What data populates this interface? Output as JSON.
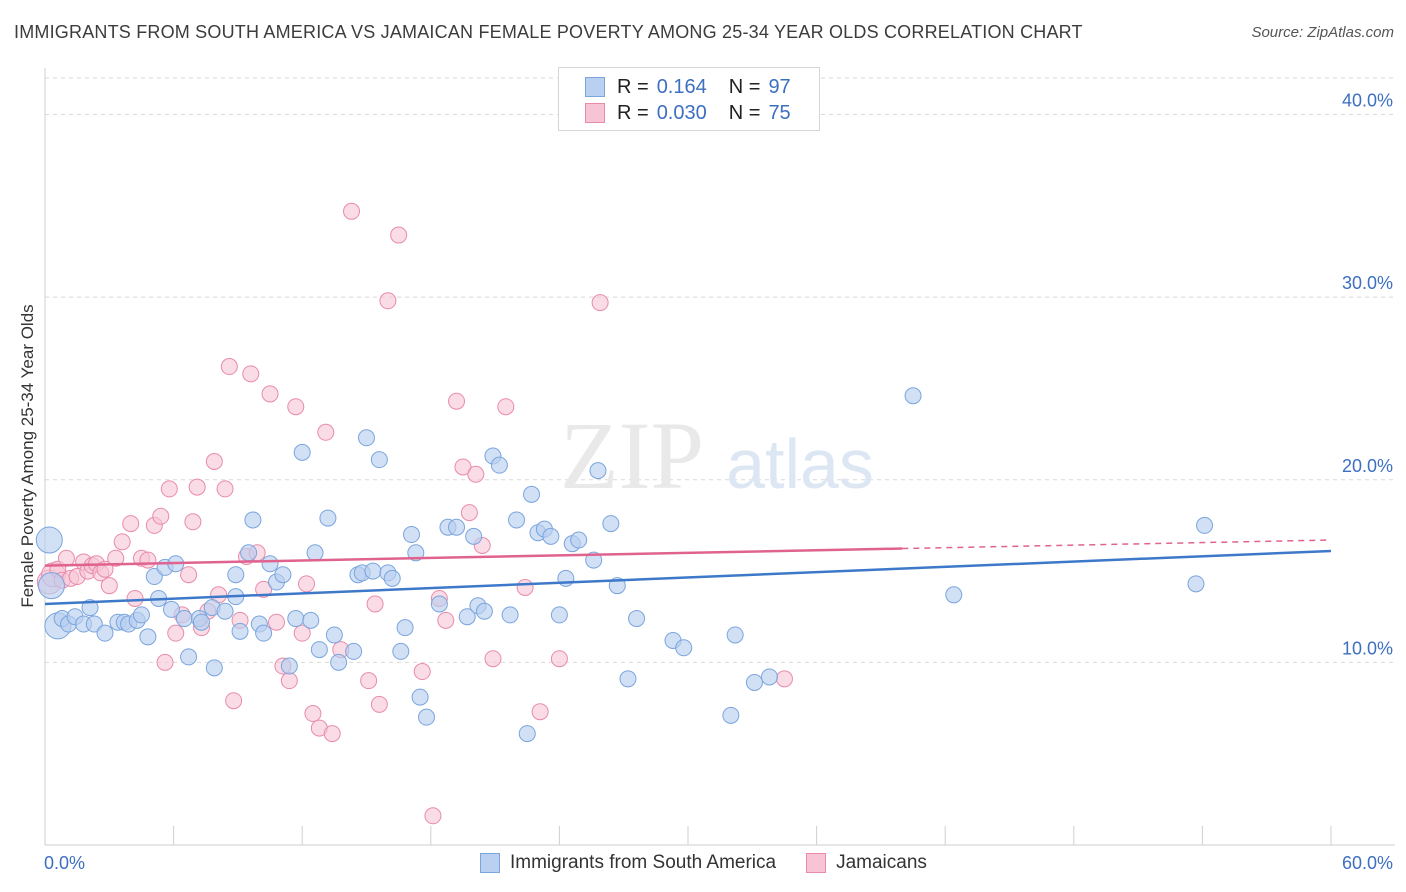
{
  "title": "IMMIGRANTS FROM SOUTH AMERICA VS JAMAICAN FEMALE POVERTY AMONG 25-34 YEAR OLDS CORRELATION CHART",
  "source": "Source: ZipAtlas.com",
  "watermark": {
    "zip": "ZIP",
    "atlas": "atlas"
  },
  "legend": {
    "r_label": "R =",
    "n_label": "N =",
    "rows": [
      {
        "r": "0.164",
        "n": "97"
      },
      {
        "r": "0.030",
        "n": "75"
      }
    ]
  },
  "bottom_legend": [
    "Immigrants from South America",
    "Jamaicans"
  ],
  "colors": {
    "blue_fill": "#b9d0f0",
    "blue_stroke": "#7aa5dd",
    "blue_line": "#3d78c9",
    "pink_fill": "#f7c4d5",
    "pink_stroke": "#e98bab",
    "pink_line": "#e0638f",
    "tick_text": "#3d6fc1",
    "grid": "#d9d9d9"
  },
  "chart_data": {
    "type": "scatter",
    "title": "IMMIGRANTS FROM SOUTH AMERICA VS JAMAICAN FEMALE POVERTY AMONG 25-34 YEAR OLDS CORRELATION CHART",
    "xlabel": "",
    "ylabel": "Female Poverty Among 25-34 Year Olds",
    "xlim": [
      0,
      60
    ],
    "ylim": [
      0,
      42
    ],
    "x_tick_labels": [
      "0.0%",
      "60.0%"
    ],
    "y_ticks": [
      10,
      20,
      30,
      40
    ],
    "y_tick_labels": [
      "10.0%",
      "20.0%",
      "30.0%",
      "40.0%"
    ],
    "grid": true,
    "legend_position": "top-center",
    "series": [
      {
        "name": "Immigrants from South America",
        "r": 0.164,
        "n": 97,
        "trend": {
          "x": [
            0,
            60
          ],
          "y": [
            13.2,
            16.1
          ]
        },
        "points": [
          [
            0.2,
            16.7
          ],
          [
            0.3,
            14.2
          ],
          [
            0.6,
            12.0
          ],
          [
            0.8,
            12.4
          ],
          [
            1.1,
            12.1
          ],
          [
            1.4,
            12.5
          ],
          [
            1.8,
            12.1
          ],
          [
            2.1,
            13.0
          ],
          [
            2.3,
            12.1
          ],
          [
            2.8,
            11.6
          ],
          [
            3.4,
            12.2
          ],
          [
            3.7,
            12.2
          ],
          [
            3.9,
            12.1
          ],
          [
            4.3,
            12.3
          ],
          [
            4.5,
            12.6
          ],
          [
            4.8,
            11.4
          ],
          [
            5.1,
            14.7
          ],
          [
            5.3,
            13.5
          ],
          [
            5.6,
            15.2
          ],
          [
            5.9,
            12.9
          ],
          [
            6.1,
            15.4
          ],
          [
            6.5,
            12.4
          ],
          [
            6.7,
            10.3
          ],
          [
            7.2,
            12.4
          ],
          [
            7.3,
            12.2
          ],
          [
            7.8,
            13.0
          ],
          [
            7.9,
            9.7
          ],
          [
            8.4,
            12.8
          ],
          [
            8.9,
            14.8
          ],
          [
            8.9,
            13.6
          ],
          [
            9.1,
            11.7
          ],
          [
            9.5,
            16.0
          ],
          [
            9.7,
            17.8
          ],
          [
            10.0,
            12.1
          ],
          [
            10.2,
            11.6
          ],
          [
            10.5,
            15.4
          ],
          [
            10.8,
            14.4
          ],
          [
            11.1,
            14.8
          ],
          [
            11.4,
            9.8
          ],
          [
            11.7,
            12.4
          ],
          [
            12.0,
            21.5
          ],
          [
            12.4,
            12.3
          ],
          [
            12.6,
            16.0
          ],
          [
            12.8,
            10.7
          ],
          [
            13.2,
            17.9
          ],
          [
            13.5,
            11.5
          ],
          [
            13.7,
            10.0
          ],
          [
            14.4,
            10.6
          ],
          [
            14.6,
            14.8
          ],
          [
            14.8,
            14.9
          ],
          [
            15.0,
            22.3
          ],
          [
            15.3,
            15.0
          ],
          [
            15.6,
            21.1
          ],
          [
            16.0,
            14.9
          ],
          [
            16.2,
            14.6
          ],
          [
            16.6,
            10.6
          ],
          [
            16.8,
            11.9
          ],
          [
            17.1,
            17.0
          ],
          [
            17.3,
            16.0
          ],
          [
            17.5,
            8.1
          ],
          [
            17.8,
            7.0
          ],
          [
            18.4,
            13.2
          ],
          [
            18.8,
            17.4
          ],
          [
            19.2,
            17.4
          ],
          [
            19.7,
            12.5
          ],
          [
            20.0,
            16.9
          ],
          [
            20.2,
            13.1
          ],
          [
            20.5,
            12.8
          ],
          [
            20.9,
            21.3
          ],
          [
            21.2,
            20.8
          ],
          [
            21.7,
            12.6
          ],
          [
            22.0,
            17.8
          ],
          [
            22.5,
            6.1
          ],
          [
            22.7,
            19.2
          ],
          [
            23.0,
            17.1
          ],
          [
            23.3,
            17.3
          ],
          [
            23.6,
            16.9
          ],
          [
            24.0,
            12.6
          ],
          [
            24.3,
            14.6
          ],
          [
            24.6,
            16.5
          ],
          [
            24.9,
            16.7
          ],
          [
            25.6,
            15.6
          ],
          [
            25.8,
            20.5
          ],
          [
            26.4,
            17.6
          ],
          [
            26.7,
            14.2
          ],
          [
            27.2,
            9.1
          ],
          [
            27.6,
            12.4
          ],
          [
            29.3,
            11.2
          ],
          [
            29.8,
            10.8
          ],
          [
            32.0,
            7.1
          ],
          [
            32.2,
            11.5
          ],
          [
            33.1,
            8.9
          ],
          [
            33.8,
            9.2
          ],
          [
            40.5,
            24.6
          ],
          [
            42.4,
            13.7
          ],
          [
            53.7,
            14.3
          ],
          [
            54.1,
            17.5
          ]
        ]
      },
      {
        "name": "Jamaicans",
        "r": 0.03,
        "n": 75,
        "trend": {
          "x": [
            0,
            60
          ],
          "y": [
            15.3,
            16.7
          ]
        },
        "points": [
          [
            0.2,
            14.4
          ],
          [
            0.4,
            14.8
          ],
          [
            0.6,
            15.1
          ],
          [
            0.8,
            14.5
          ],
          [
            1.0,
            15.7
          ],
          [
            1.2,
            14.6
          ],
          [
            1.5,
            14.7
          ],
          [
            1.8,
            15.5
          ],
          [
            2.0,
            15.0
          ],
          [
            2.2,
            15.3
          ],
          [
            2.4,
            15.4
          ],
          [
            2.6,
            14.9
          ],
          [
            2.8,
            15.1
          ],
          [
            3.0,
            14.2
          ],
          [
            3.3,
            15.7
          ],
          [
            3.6,
            16.6
          ],
          [
            4.0,
            17.6
          ],
          [
            4.2,
            13.5
          ],
          [
            4.5,
            15.7
          ],
          [
            4.8,
            15.6
          ],
          [
            5.1,
            17.5
          ],
          [
            5.4,
            18.0
          ],
          [
            5.6,
            10.0
          ],
          [
            5.8,
            19.5
          ],
          [
            6.1,
            11.6
          ],
          [
            6.4,
            12.6
          ],
          [
            6.7,
            14.8
          ],
          [
            6.9,
            17.7
          ],
          [
            7.1,
            19.6
          ],
          [
            7.3,
            11.9
          ],
          [
            7.6,
            12.8
          ],
          [
            7.9,
            21.0
          ],
          [
            8.1,
            13.7
          ],
          [
            8.4,
            19.5
          ],
          [
            8.6,
            26.2
          ],
          [
            8.8,
            7.9
          ],
          [
            9.1,
            12.3
          ],
          [
            9.4,
            15.8
          ],
          [
            9.6,
            25.8
          ],
          [
            9.9,
            16.0
          ],
          [
            10.2,
            14.0
          ],
          [
            10.5,
            24.7
          ],
          [
            10.8,
            12.2
          ],
          [
            11.1,
            9.8
          ],
          [
            11.4,
            9.0
          ],
          [
            11.7,
            24.0
          ],
          [
            12.0,
            11.6
          ],
          [
            12.2,
            14.3
          ],
          [
            12.5,
            7.2
          ],
          [
            12.8,
            6.4
          ],
          [
            13.1,
            22.6
          ],
          [
            13.4,
            6.1
          ],
          [
            13.8,
            10.7
          ],
          [
            14.3,
            34.7
          ],
          [
            15.1,
            9.0
          ],
          [
            15.4,
            13.2
          ],
          [
            15.6,
            7.7
          ],
          [
            16.0,
            29.8
          ],
          [
            16.5,
            33.4
          ],
          [
            17.6,
            9.5
          ],
          [
            18.1,
            1.6
          ],
          [
            18.4,
            13.5
          ],
          [
            18.7,
            12.3
          ],
          [
            19.2,
            24.3
          ],
          [
            19.5,
            20.7
          ],
          [
            19.8,
            18.2
          ],
          [
            20.1,
            20.3
          ],
          [
            20.4,
            16.4
          ],
          [
            20.9,
            10.2
          ],
          [
            21.5,
            24.0
          ],
          [
            22.4,
            14.1
          ],
          [
            23.1,
            7.3
          ],
          [
            24.0,
            10.2
          ],
          [
            25.9,
            29.7
          ],
          [
            34.5,
            9.1
          ]
        ]
      }
    ]
  }
}
